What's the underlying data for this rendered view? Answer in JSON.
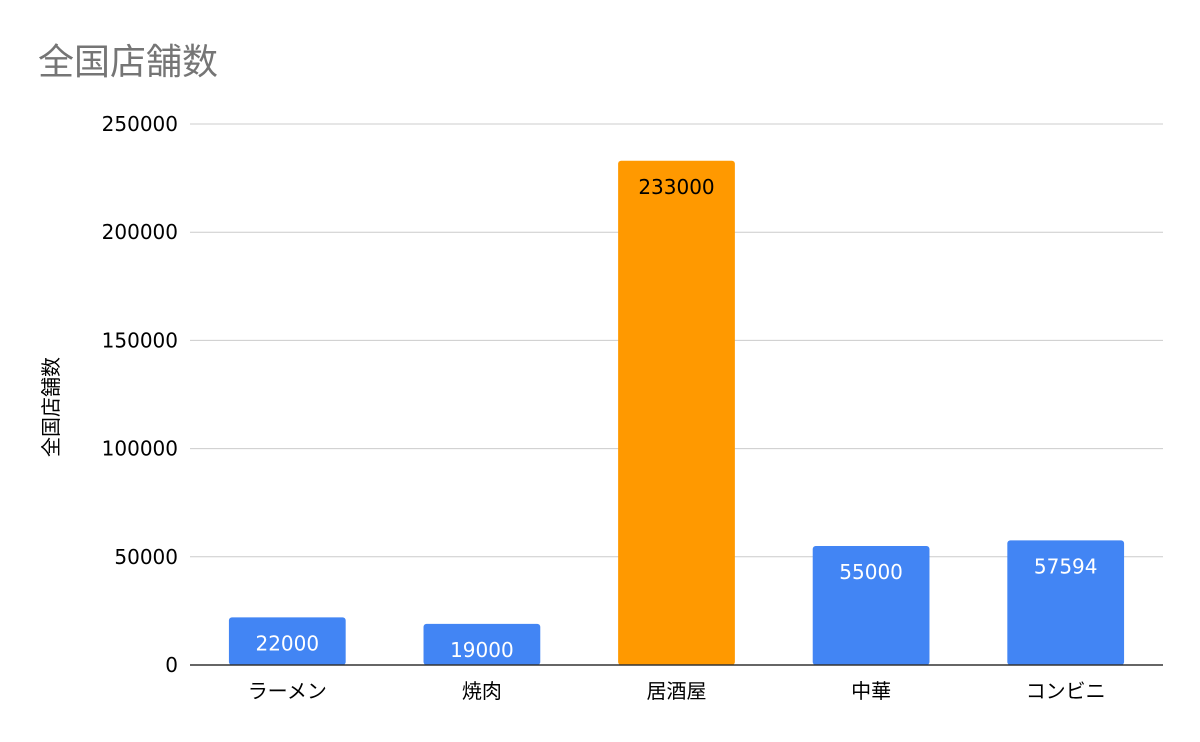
{
  "chart_data": {
    "type": "bar",
    "title": "全国店舗数",
    "xlabel": "",
    "ylabel": "全国店舗数",
    "categories": [
      "ラーメン",
      "焼肉",
      "居酒屋",
      "中華",
      "コンビニ"
    ],
    "values": [
      22000,
      19000,
      233000,
      55000,
      57594
    ],
    "data_labels": [
      "22000",
      "19000",
      "233000",
      "55000",
      "57594"
    ],
    "bar_colors": [
      "#4285f4",
      "#4285f4",
      "#ff9900",
      "#4285f4",
      "#4285f4"
    ],
    "label_colors": [
      "#ffffff",
      "#ffffff",
      "#000000",
      "#ffffff",
      "#ffffff"
    ],
    "ylim": [
      0,
      250000
    ],
    "yticks": [
      0,
      50000,
      100000,
      150000,
      200000,
      250000
    ],
    "ytick_labels": [
      "0",
      "50000",
      "100000",
      "150000",
      "200000",
      "250000"
    ],
    "grid": true,
    "legend": "none"
  }
}
